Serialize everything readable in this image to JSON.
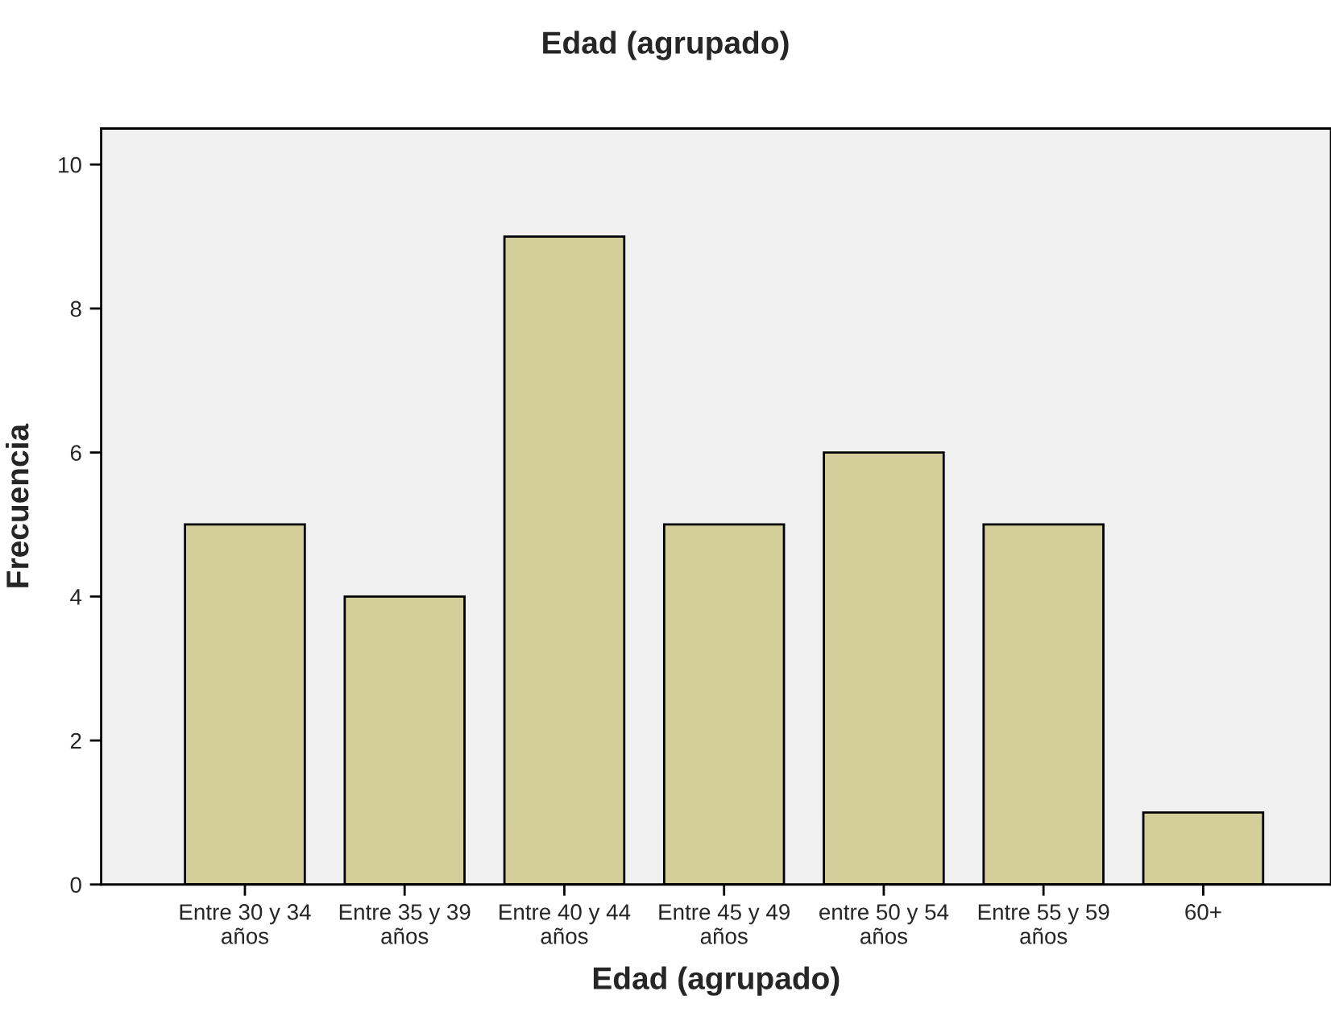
{
  "chart_data": {
    "type": "bar",
    "title": "Edad (agrupado)",
    "xlabel": "Edad (agrupado)",
    "ylabel": "Frecuencia",
    "categories": [
      "Entre 30 y 34\naños",
      "Entre 35 y 39\naños",
      "Entre 40 y 44\naños",
      "Entre 45 y 49\naños",
      "entre 50 y 54\naños",
      "Entre 55 y 59\naños",
      "60+"
    ],
    "values": [
      5,
      4,
      9,
      5,
      6,
      5,
      1
    ],
    "color": "#d4cf9a",
    "ylim": [
      0,
      10.5
    ],
    "yticks": [
      0,
      2,
      4,
      6,
      8,
      10
    ],
    "grid": false
  }
}
